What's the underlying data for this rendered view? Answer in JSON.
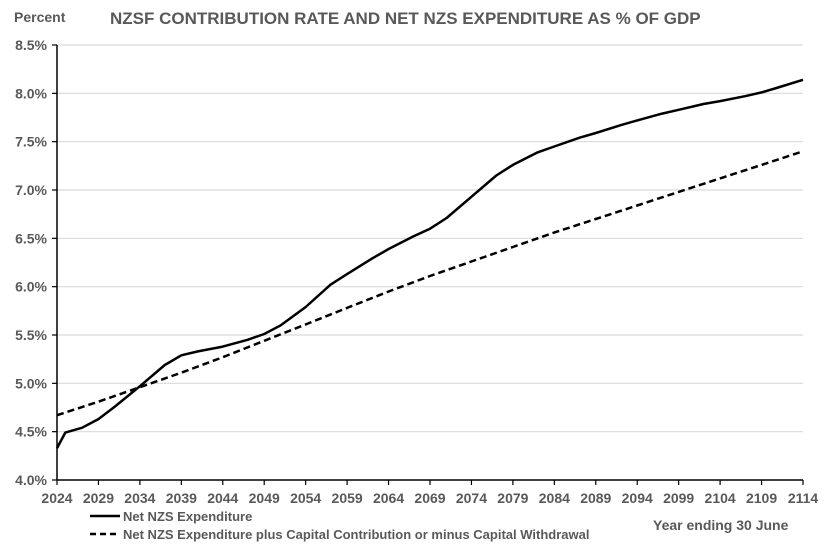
{
  "chart_data": {
    "type": "line",
    "title": "NZSF CONTRIBUTION RATE AND NET NZS EXPENDITURE AS % OF GDP",
    "ylabel": "Percent",
    "xlabel": "Year ending 30 June",
    "ylim": [
      4.0,
      8.5
    ],
    "xlim": [
      2024,
      2114
    ],
    "grid": "horizontal",
    "legend_position": "bottom-left",
    "y_ticks": [
      "4.0%",
      "4.5%",
      "5.0%",
      "5.5%",
      "6.0%",
      "6.5%",
      "7.0%",
      "7.5%",
      "8.0%",
      "8.5%"
    ],
    "y_tick_values": [
      4.0,
      4.5,
      5.0,
      5.5,
      6.0,
      6.5,
      7.0,
      7.5,
      8.0,
      8.5
    ],
    "x_ticks": [
      "2024",
      "2029",
      "2034",
      "2039",
      "2044",
      "2049",
      "2054",
      "2059",
      "2064",
      "2069",
      "2074",
      "2079",
      "2084",
      "2089",
      "2094",
      "2099",
      "2104",
      "2109",
      "2114"
    ],
    "x_tick_values": [
      2024,
      2029,
      2034,
      2039,
      2044,
      2049,
      2054,
      2059,
      2064,
      2069,
      2074,
      2079,
      2084,
      2089,
      2094,
      2099,
      2104,
      2109,
      2114
    ],
    "series": [
      {
        "name": "Net NZS Expenditure",
        "style": "solid",
        "color": "#000000",
        "x": [
          2024,
          2025,
          2027,
          2029,
          2031,
          2034,
          2037,
          2039,
          2041,
          2044,
          2047,
          2049,
          2051,
          2054,
          2057,
          2059,
          2062,
          2064,
          2067,
          2069,
          2071,
          2074,
          2077,
          2079,
          2082,
          2084,
          2087,
          2089,
          2092,
          2094,
          2097,
          2099,
          2102,
          2104,
          2107,
          2109,
          2111,
          2114
        ],
        "values": [
          4.33,
          4.49,
          4.54,
          4.63,
          4.76,
          4.97,
          5.19,
          5.29,
          5.33,
          5.38,
          5.45,
          5.51,
          5.6,
          5.79,
          6.02,
          6.13,
          6.29,
          6.39,
          6.52,
          6.6,
          6.71,
          6.93,
          7.15,
          7.26,
          7.39,
          7.45,
          7.54,
          7.59,
          7.67,
          7.72,
          7.79,
          7.83,
          7.89,
          7.92,
          7.97,
          8.01,
          8.06,
          8.14
        ]
      },
      {
        "name": "Net NZS Expenditure plus Capital Contribution or minus Capital Withdrawal",
        "style": "dashed",
        "color": "#000000",
        "x": [
          2024,
          2029,
          2034,
          2039,
          2044,
          2049,
          2054,
          2059,
          2064,
          2069,
          2074,
          2079,
          2084,
          2089,
          2094,
          2099,
          2104,
          2109,
          2114
        ],
        "values": [
          4.67,
          4.81,
          4.96,
          5.11,
          5.27,
          5.44,
          5.61,
          5.78,
          5.95,
          6.11,
          6.26,
          6.41,
          6.56,
          6.7,
          6.84,
          6.98,
          7.12,
          7.26,
          7.4
        ]
      }
    ]
  }
}
